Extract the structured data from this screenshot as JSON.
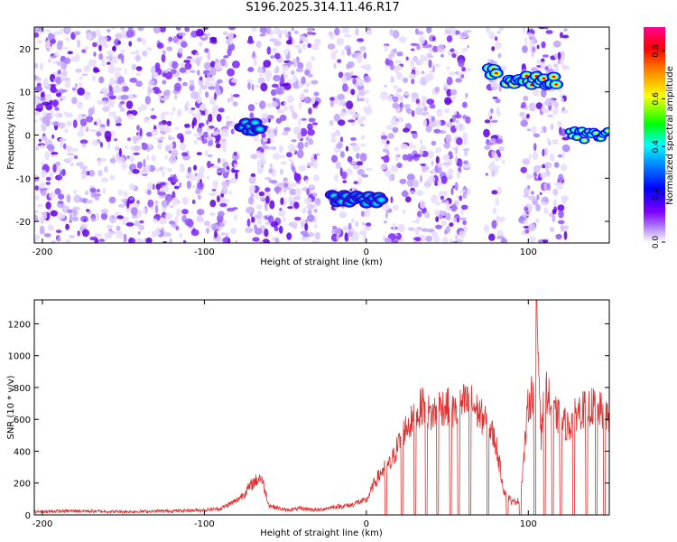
{
  "title": "S196.2025.314.11.46.R17",
  "chart_data": [
    {
      "type": "heatmap",
      "title": "S196.2025.314.11.46.R17",
      "xlabel": "Height of straight line (km)",
      "ylabel": "Frequency (Hz)",
      "xlim": [
        -205,
        150
      ],
      "ylim": [
        -25,
        25
      ],
      "x_ticks": [
        -200,
        -100,
        0,
        100
      ],
      "y_ticks": [
        -20,
        -10,
        0,
        10,
        20
      ],
      "colorbar": {
        "label": "Normalized spectral amplitude",
        "range": [
          0.0,
          0.9
        ],
        "ticks": [
          0.0,
          0.2,
          0.4,
          0.6,
          0.8
        ],
        "colormap": [
          "#ffffff",
          "#7f00ff",
          "#0000ff",
          "#00ffff",
          "#00ff00",
          "#ffff00",
          "#ff8000",
          "#ff0000",
          "#ff0080"
        ]
      },
      "empty_bands_km": [
        [
          -80,
          -73
        ],
        [
          -30,
          -22
        ],
        [
          2,
          10
        ],
        [
          63,
          74
        ],
        [
          85,
          96
        ],
        [
          124,
          150
        ]
      ],
      "signal_tracks": [
        {
          "x_start": -78,
          "x_end": -65,
          "freq_hz": 2,
          "peak_amplitude": 0.45
        },
        {
          "x_start": -22,
          "x_end": 10,
          "freq_hz": -15,
          "peak_amplitude": 0.4
        },
        {
          "x_start": 75,
          "x_end": 81,
          "freq_hz": 15,
          "peak_amplitude": 0.85
        },
        {
          "x_start": 86,
          "x_end": 118,
          "freq_hz": 12.5,
          "peak_amplitude": 0.9
        },
        {
          "x_start": 125,
          "x_end": 150,
          "freq_hz": 0,
          "peak_amplitude": 0.7
        }
      ]
    },
    {
      "type": "line",
      "xlabel": "Height of straight line (km)",
      "ylabel": "SNR (10 * v/v)",
      "xlim": [
        -205,
        150
      ],
      "ylim": [
        0,
        1350
      ],
      "x_ticks": [
        -200,
        -100,
        0,
        100
      ],
      "y_ticks": [
        0,
        200,
        400,
        600,
        800,
        1000,
        1200
      ],
      "series": [
        {
          "color": "#e03030",
          "x": [
            -205,
            -180,
            -150,
            -120,
            -100,
            -90,
            -80,
            -75,
            -70,
            -65,
            -60,
            -50,
            -40,
            -30,
            -20,
            -10,
            -5,
            0,
            5,
            10,
            15,
            20,
            25,
            30,
            35,
            40,
            45,
            50,
            55,
            60,
            65,
            70,
            75,
            80,
            85,
            90,
            95,
            100,
            103,
            105,
            108,
            110,
            115,
            120,
            125,
            130,
            140,
            150
          ],
          "y": [
            20,
            25,
            20,
            25,
            30,
            40,
            90,
            140,
            200,
            240,
            60,
            30,
            40,
            30,
            50,
            60,
            80,
            90,
            200,
            280,
            320,
            450,
            560,
            600,
            700,
            620,
            680,
            680,
            640,
            700,
            700,
            630,
            580,
            450,
            150,
            80,
            90,
            700,
            780,
            1350,
            500,
            820,
            650,
            600,
            550,
            650,
            680,
            620
          ]
        }
      ],
      "dropouts_km": [
        12,
        22,
        30,
        37,
        44,
        52,
        57,
        64,
        75,
        87,
        95,
        104,
        110,
        115,
        120,
        128,
        136,
        142,
        147
      ]
    }
  ]
}
